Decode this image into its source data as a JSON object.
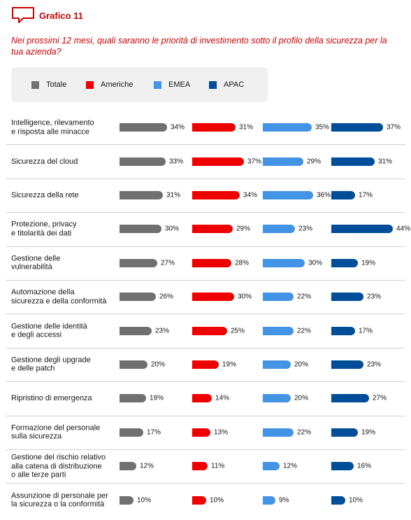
{
  "header": {
    "label": "Grafico 11"
  },
  "question": "Nei prossimi 12 mesi, quali saranno le priorità di investimento sotto il profilo della sicurezza per la tua azienda?",
  "colors": {
    "accent": "#cc0000",
    "Totale": "#707070",
    "Americhe": "#ee0000",
    "EMEA": "#4394e5",
    "APAC": "#004d99"
  },
  "chart_data": {
    "type": "bar",
    "orientation": "horizontal",
    "unit": "%",
    "legend_position": "top-left",
    "categories": [
      "Intelligence, rilevamento\ne risposta alle minacce",
      "Sicurezza del cloud",
      "Sicurezza della rete",
      "Protezione, privacy\ne titolarità dei dati",
      "Gestione delle\nvulnerabilità",
      "Automazione della\nsicurezza e della conformità",
      "Gestione delle identità\ne degli accessi",
      "Gestione degli upgrade\ne delle patch",
      "Ripristino di emergenza",
      "Formazione del personale\nsulla sicurezza",
      "Gestione del rischio relativo\nalla catena di distribuzione\no alle terze parti",
      "Assunzione di personale per\nla sicurezza o la conformità"
    ],
    "series": [
      {
        "name": "Totale",
        "values": [
          34,
          33,
          31,
          30,
          27,
          26,
          23,
          20,
          19,
          17,
          12,
          10
        ]
      },
      {
        "name": "Americhe",
        "values": [
          31,
          37,
          34,
          29,
          28,
          30,
          25,
          19,
          14,
          13,
          11,
          10
        ]
      },
      {
        "name": "EMEA",
        "values": [
          35,
          29,
          36,
          23,
          30,
          22,
          22,
          20,
          20,
          22,
          12,
          9
        ]
      },
      {
        "name": "APAC",
        "values": [
          37,
          31,
          17,
          44,
          19,
          23,
          17,
          23,
          27,
          19,
          16,
          10
        ]
      }
    ]
  }
}
